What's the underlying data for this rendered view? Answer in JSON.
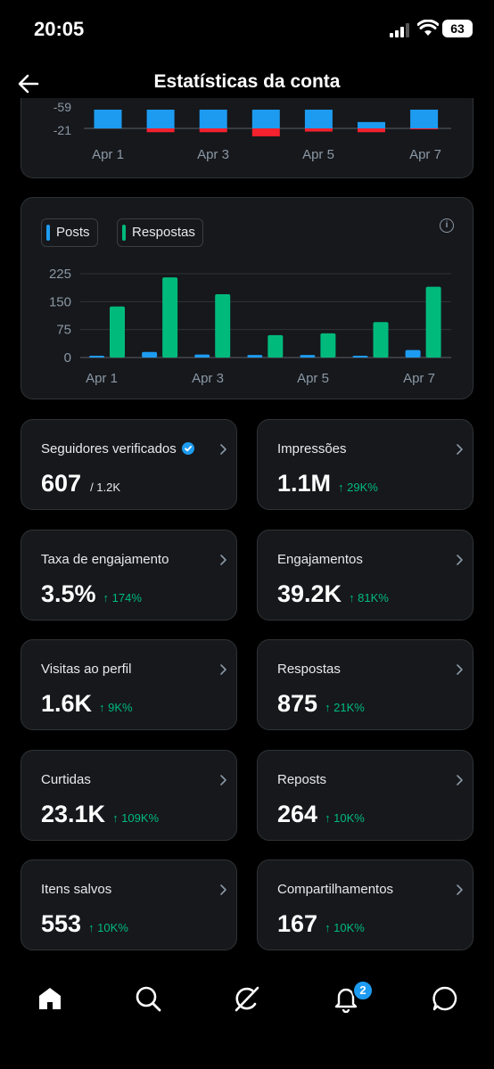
{
  "status_bar": {
    "time": "20:05",
    "battery": "63"
  },
  "header": {
    "title": "Estatísticas da conta"
  },
  "chart_data": [
    {
      "type": "bar",
      "partial": true,
      "y_tick_labels": [
        "-59",
        "-21"
      ],
      "x_tick_labels": [
        "Apr 1",
        "Apr 3",
        "Apr 5",
        "Apr 7"
      ],
      "categories": [
        "Apr 1",
        "Apr 2",
        "Apr 3",
        "Apr 4",
        "Apr 5",
        "Apr 6",
        "Apr 7"
      ],
      "series": [
        {
          "values": [
            -59,
            -59,
            -59,
            -59,
            -59,
            -20,
            -59
          ],
          "color": "#1d9bf0"
        },
        {
          "values": [
            0,
            -12,
            -12,
            -25,
            -10,
            -12,
            -3
          ],
          "color": "#f4212e"
        }
      ]
    },
    {
      "type": "bar",
      "y_ticks": [
        0,
        75,
        150,
        225
      ],
      "ylim": [
        0,
        225
      ],
      "x_tick_labels": [
        "Apr 1",
        "Apr 3",
        "Apr 5",
        "Apr 7"
      ],
      "categories": [
        "Apr 1",
        "Apr 2",
        "Apr 3",
        "Apr 4",
        "Apr 5",
        "Apr 6",
        "Apr 7"
      ],
      "legend": {
        "placement": "top-left"
      },
      "series": [
        {
          "name": "Posts",
          "color": "#1d9bf0",
          "values": [
            3,
            15,
            8,
            7,
            7,
            4,
            20
          ]
        },
        {
          "name": "Respostas",
          "color": "#00ba7c",
          "values": [
            137,
            215,
            170,
            60,
            65,
            95,
            190
          ]
        }
      ]
    }
  ],
  "stats": [
    {
      "label": "Seguidores verificados",
      "value": "607",
      "total": "/ 1.2K",
      "verified": true
    },
    {
      "label": "Impressões",
      "value": "1.1M",
      "delta": "↑ 29K%"
    },
    {
      "label": "Taxa de engajamento",
      "value": "3.5%",
      "delta": "↑ 174%"
    },
    {
      "label": "Engajamentos",
      "value": "39.2K",
      "delta": "↑ 81K%"
    },
    {
      "label": "Visitas ao perfil",
      "value": "1.6K",
      "delta": "↑ 9K%"
    },
    {
      "label": "Respostas",
      "value": "875",
      "delta": "↑ 21K%"
    },
    {
      "label": "Curtidas",
      "value": "23.1K",
      "delta": "↑ 109K%"
    },
    {
      "label": "Reposts",
      "value": "264",
      "delta": "↑ 10K%"
    },
    {
      "label": "Itens salvos",
      "value": "553",
      "delta": "↑ 10K%"
    },
    {
      "label": "Compartilhamentos",
      "value": "167",
      "delta": "↑ 10K%"
    }
  ],
  "tabbar": {
    "icons": [
      "home-icon",
      "search-icon",
      "grok-icon",
      "notifications-icon",
      "messages-icon"
    ],
    "notification_count": "2"
  }
}
